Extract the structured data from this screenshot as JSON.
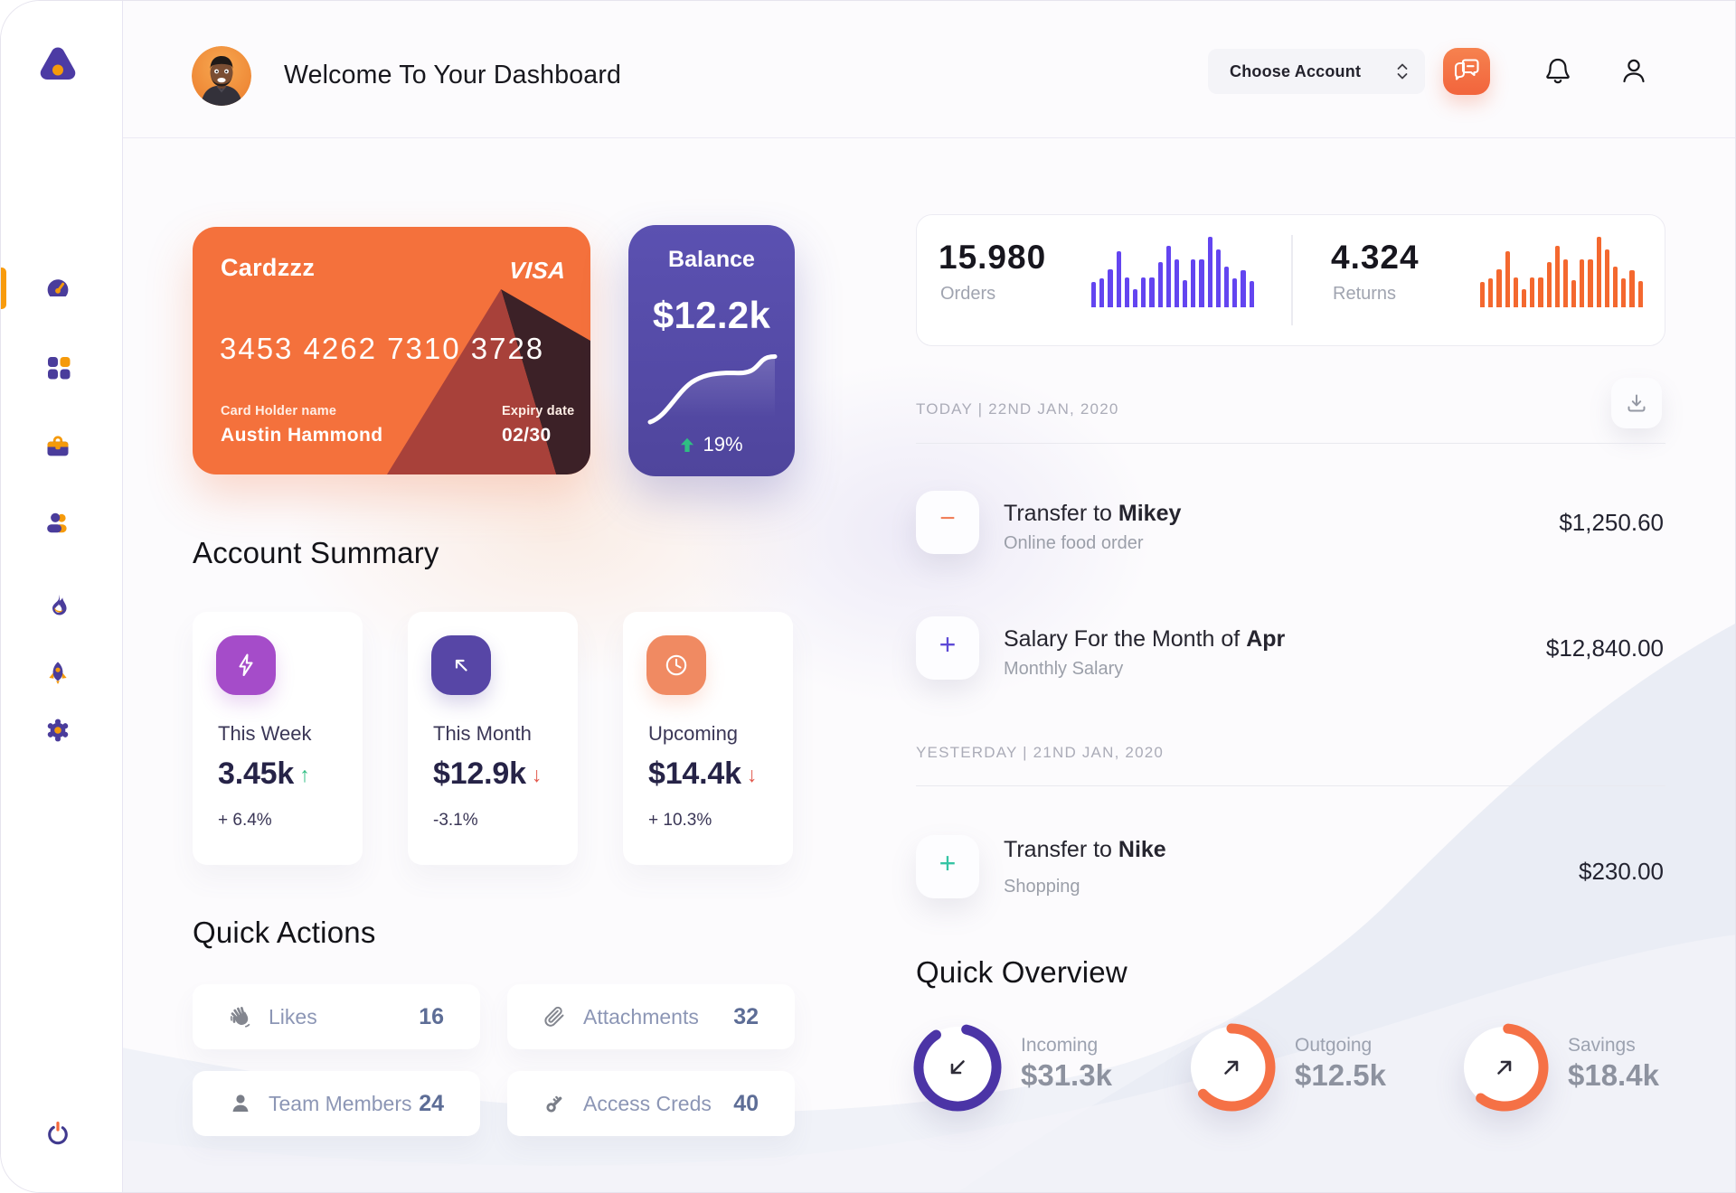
{
  "header": {
    "title": "Welcome To Your Dashboard",
    "account_selector_label": "Choose Account"
  },
  "sidebar": {
    "items": [
      {
        "name": "dashboard",
        "active": true
      },
      {
        "name": "apps",
        "active": false
      },
      {
        "name": "portfolio",
        "active": false
      },
      {
        "name": "team",
        "active": false
      },
      {
        "name": "trending",
        "active": false
      },
      {
        "name": "launch",
        "active": false
      },
      {
        "name": "settings",
        "active": false
      }
    ]
  },
  "credit_card": {
    "name": "Cardzzz",
    "brand": "VISA",
    "number": "3453 4262 7310 3728",
    "holder_label": "Card Holder name",
    "holder_name": "Austin Hammond",
    "expiry_label": "Expiry date",
    "expiry_value": "02/30"
  },
  "balance_card": {
    "title": "Balance",
    "amount": "$12.2k",
    "change_percent": "19%"
  },
  "account_summary": {
    "heading": "Account Summary",
    "cards": [
      {
        "label": "This Week",
        "value": "3.45k",
        "trend": "up",
        "delta": "+ 6.4%",
        "icon": "lightning",
        "icon_color": "#A54CC9"
      },
      {
        "label": "This Month",
        "value": "$12.9k",
        "trend": "down",
        "delta": "-3.1%",
        "icon": "arrow-up-left",
        "icon_color": "#5746A6"
      },
      {
        "label": "Upcoming",
        "value": "$14.4k",
        "trend": "down",
        "delta": "+ 10.3%",
        "icon": "clock",
        "icon_color": "#F08A62"
      }
    ]
  },
  "quick_actions": {
    "heading": "Quick Actions",
    "items": [
      {
        "label": "Likes",
        "count": "16",
        "icon": "wave-hand"
      },
      {
        "label": "Attachments",
        "count": "32",
        "icon": "paperclip"
      },
      {
        "label": "Team Members",
        "count": "24",
        "icon": "person"
      },
      {
        "label": "Access Creds",
        "count": "40",
        "icon": "key"
      }
    ]
  },
  "stats": {
    "orders": {
      "value": "15.980",
      "label": "Orders",
      "color": "#6345F0"
    },
    "returns": {
      "value": "4.324",
      "label": "Returns",
      "color": "#F4682F"
    }
  },
  "activity": {
    "groups": [
      {
        "date_label": "TODAY | 22ND JAN, 2020",
        "transactions": [
          {
            "title_prefix": "Transfer to ",
            "title_bold": "Mikey",
            "note": "Online food order",
            "amount": "$1,250.60",
            "sign": "minus",
            "sign_color": "#F0805A"
          },
          {
            "title_prefix": "Salary For the Month of ",
            "title_bold": "Apr",
            "note": "Monthly Salary",
            "amount": "$12,840.00",
            "sign": "plus",
            "sign_color": "#5D49D6"
          }
        ]
      },
      {
        "date_label": "YESTERDAY | 21ND JAN, 2020",
        "transactions": [
          {
            "title_prefix": "Transfer to ",
            "title_bold": "Nike",
            "note": "Shopping",
            "amount": "$230.00",
            "sign": "plus",
            "sign_color": "#35C4A4"
          }
        ]
      }
    ]
  },
  "quick_overview": {
    "heading": "Quick Overview",
    "items": [
      {
        "label": "Incoming",
        "value": "$31.3k",
        "direction": "down-left",
        "ring_color": "#4B34A6",
        "fill_percent": 87,
        "start_angle": 283
      },
      {
        "label": "Outgoing",
        "value": "$12.5k",
        "direction": "up-right",
        "ring_color": "#F57146",
        "fill_percent": 63,
        "start_angle": 270
      },
      {
        "label": "Savings",
        "value": "$18.4k",
        "direction": "up-right",
        "ring_color": "#F57146",
        "fill_percent": 59,
        "start_angle": 275
      }
    ]
  },
  "chart_data": [
    {
      "type": "bar",
      "name": "orders_spark",
      "title": "Orders mini bar chart",
      "values": [
        36,
        41,
        54,
        79,
        42,
        26,
        42,
        42,
        64,
        87,
        68,
        38,
        68,
        68,
        100,
        82,
        58,
        41,
        52,
        37
      ],
      "color": "#6345F0",
      "max": 100
    },
    {
      "type": "bar",
      "name": "returns_spark",
      "title": "Returns mini bar chart",
      "values": [
        36,
        41,
        54,
        79,
        42,
        26,
        42,
        42,
        64,
        87,
        68,
        38,
        68,
        68,
        100,
        82,
        58,
        41,
        52,
        37
      ],
      "color": "#F4682F",
      "max": 100
    },
    {
      "type": "line",
      "name": "balance_trend",
      "title": "Balance trend sparkline",
      "values": [
        18,
        22,
        34,
        48,
        55,
        56,
        56,
        57,
        63,
        66
      ],
      "color": "#FFFFFF"
    }
  ]
}
